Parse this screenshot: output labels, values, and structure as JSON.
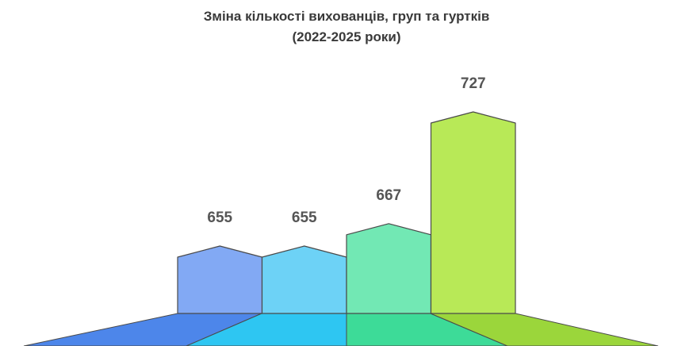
{
  "chart_data": {
    "type": "bar",
    "title": "Зміна кількості вихованців, груп та гуртків",
    "subtitle": "(2022-2025 роки)",
    "values": [
      655,
      655,
      667,
      727
    ],
    "colors": [
      "#82a9f4",
      "#6dd2f6",
      "#72e8b4",
      "#b8e957"
    ]
  }
}
